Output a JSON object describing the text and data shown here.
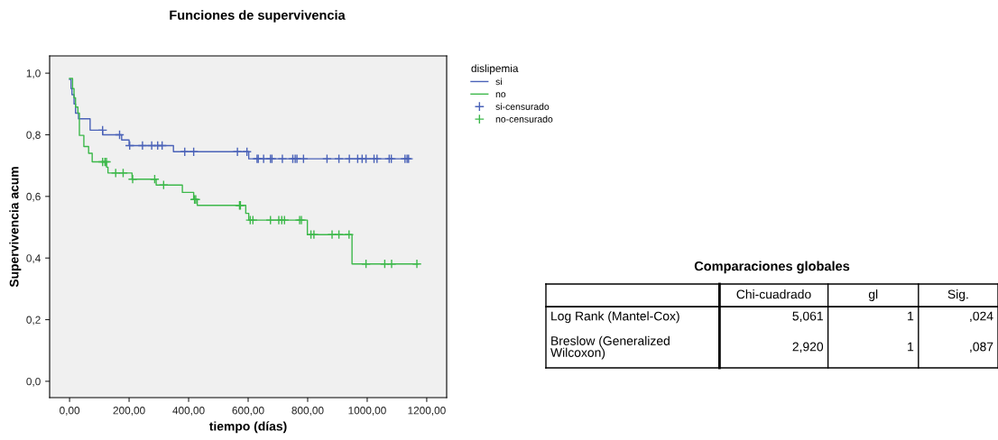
{
  "chart_data": [
    {
      "type": "step",
      "title": "Funciones de supervivencia",
      "xlabel": "tiempo (días)",
      "ylabel": "Supervivencia acum",
      "legend_title": "dislipemia",
      "legend": "right",
      "xlim": [
        -67,
        1267
      ],
      "xticks": [
        {
          "value": 0,
          "label": "0,00"
        },
        {
          "value": 200,
          "label": "200,00"
        },
        {
          "value": 400,
          "label": "400,00"
        },
        {
          "value": 600,
          "label": "600,00"
        },
        {
          "value": 800,
          "label": "800,00"
        },
        {
          "value": 1000,
          "label": "1000,00"
        },
        {
          "value": 1200,
          "label": "1200,00"
        }
      ],
      "ylim": [
        -0.053,
        1.056
      ],
      "yticks": [
        {
          "value": 0,
          "label": "0,0"
        },
        {
          "value": 0.2,
          "label": "0,2"
        },
        {
          "value": 0.4,
          "label": "0,4"
        },
        {
          "value": 0.6,
          "label": "0,6"
        },
        {
          "value": 0.8,
          "label": "0,8"
        },
        {
          "value": 1.0,
          "label": "1,0"
        }
      ],
      "grid": false,
      "series": [
        {
          "name": "si",
          "type": "step",
          "color": "#4a62b8",
          "x": [
            0,
            5,
            8,
            15,
            20,
            30,
            69,
            111,
            175,
            200,
            349,
            602,
            1145
          ],
          "values": [
            0.98,
            0.95,
            0.93,
            0.9,
            0.87,
            0.852,
            0.815,
            0.8,
            0.783,
            0.765,
            0.745,
            0.722,
            0.722
          ]
        },
        {
          "name": "no",
          "type": "step",
          "color": "#3cb84a",
          "x": [
            0,
            10,
            15,
            20,
            28,
            33,
            48,
            64,
            76,
            124,
            129,
            210,
            291,
            379,
            417,
            429,
            592,
            602,
            799,
            949,
            1170
          ],
          "values": [
            0.983,
            0.95,
            0.92,
            0.89,
            0.87,
            0.798,
            0.762,
            0.74,
            0.712,
            0.695,
            0.676,
            0.656,
            0.637,
            0.613,
            0.59,
            0.571,
            0.545,
            0.523,
            0.476,
            0.381,
            0.381
          ]
        },
        {
          "name": "si-censurado",
          "type": "scatter",
          "marker": "cross",
          "color": "#4a62b8",
          "x": [
            111,
            168,
            202,
            245,
            276,
            296,
            311,
            387,
            417,
            564,
            596,
            630,
            634,
            652,
            675,
            680,
            715,
            750,
            758,
            764,
            786,
            865,
            905,
            940,
            968,
            983,
            996,
            1023,
            1033,
            1074,
            1081,
            1127,
            1134,
            1139
          ],
          "values": [
            0.815,
            0.8,
            0.765,
            0.765,
            0.765,
            0.765,
            0.765,
            0.745,
            0.745,
            0.745,
            0.745,
            0.722,
            0.722,
            0.722,
            0.722,
            0.722,
            0.722,
            0.722,
            0.722,
            0.722,
            0.722,
            0.722,
            0.722,
            0.722,
            0.722,
            0.722,
            0.722,
            0.722,
            0.722,
            0.722,
            0.722,
            0.722,
            0.722,
            0.722
          ]
        },
        {
          "name": "no-censurado",
          "type": "scatter",
          "marker": "cross",
          "color": "#3cb84a",
          "x": [
            111,
            119,
            124,
            155,
            180,
            212,
            286,
            316,
            420,
            424,
            571,
            574,
            607,
            616,
            675,
            703,
            713,
            722,
            773,
            779,
            811,
            821,
            882,
            905,
            939,
            996,
            1059,
            1082,
            1167
          ],
          "values": [
            0.712,
            0.712,
            0.712,
            0.676,
            0.676,
            0.656,
            0.656,
            0.637,
            0.59,
            0.59,
            0.571,
            0.571,
            0.523,
            0.523,
            0.523,
            0.523,
            0.523,
            0.523,
            0.523,
            0.523,
            0.476,
            0.476,
            0.476,
            0.476,
            0.476,
            0.381,
            0.381,
            0.381,
            0.381
          ]
        }
      ]
    },
    {
      "type": "other",
      "title": "Comparaciones globales",
      "categories": [
        "Chi-cuadrado",
        "gl",
        "Sig."
      ],
      "y_categories": [
        "Log Rank (Mantel-Cox)",
        "Breslow (Generalized\nWilcoxon)"
      ],
      "cell_labels": [
        [
          "5,061",
          "1",
          ",024"
        ],
        [
          "2,920",
          "1",
          ",087"
        ]
      ]
    }
  ]
}
